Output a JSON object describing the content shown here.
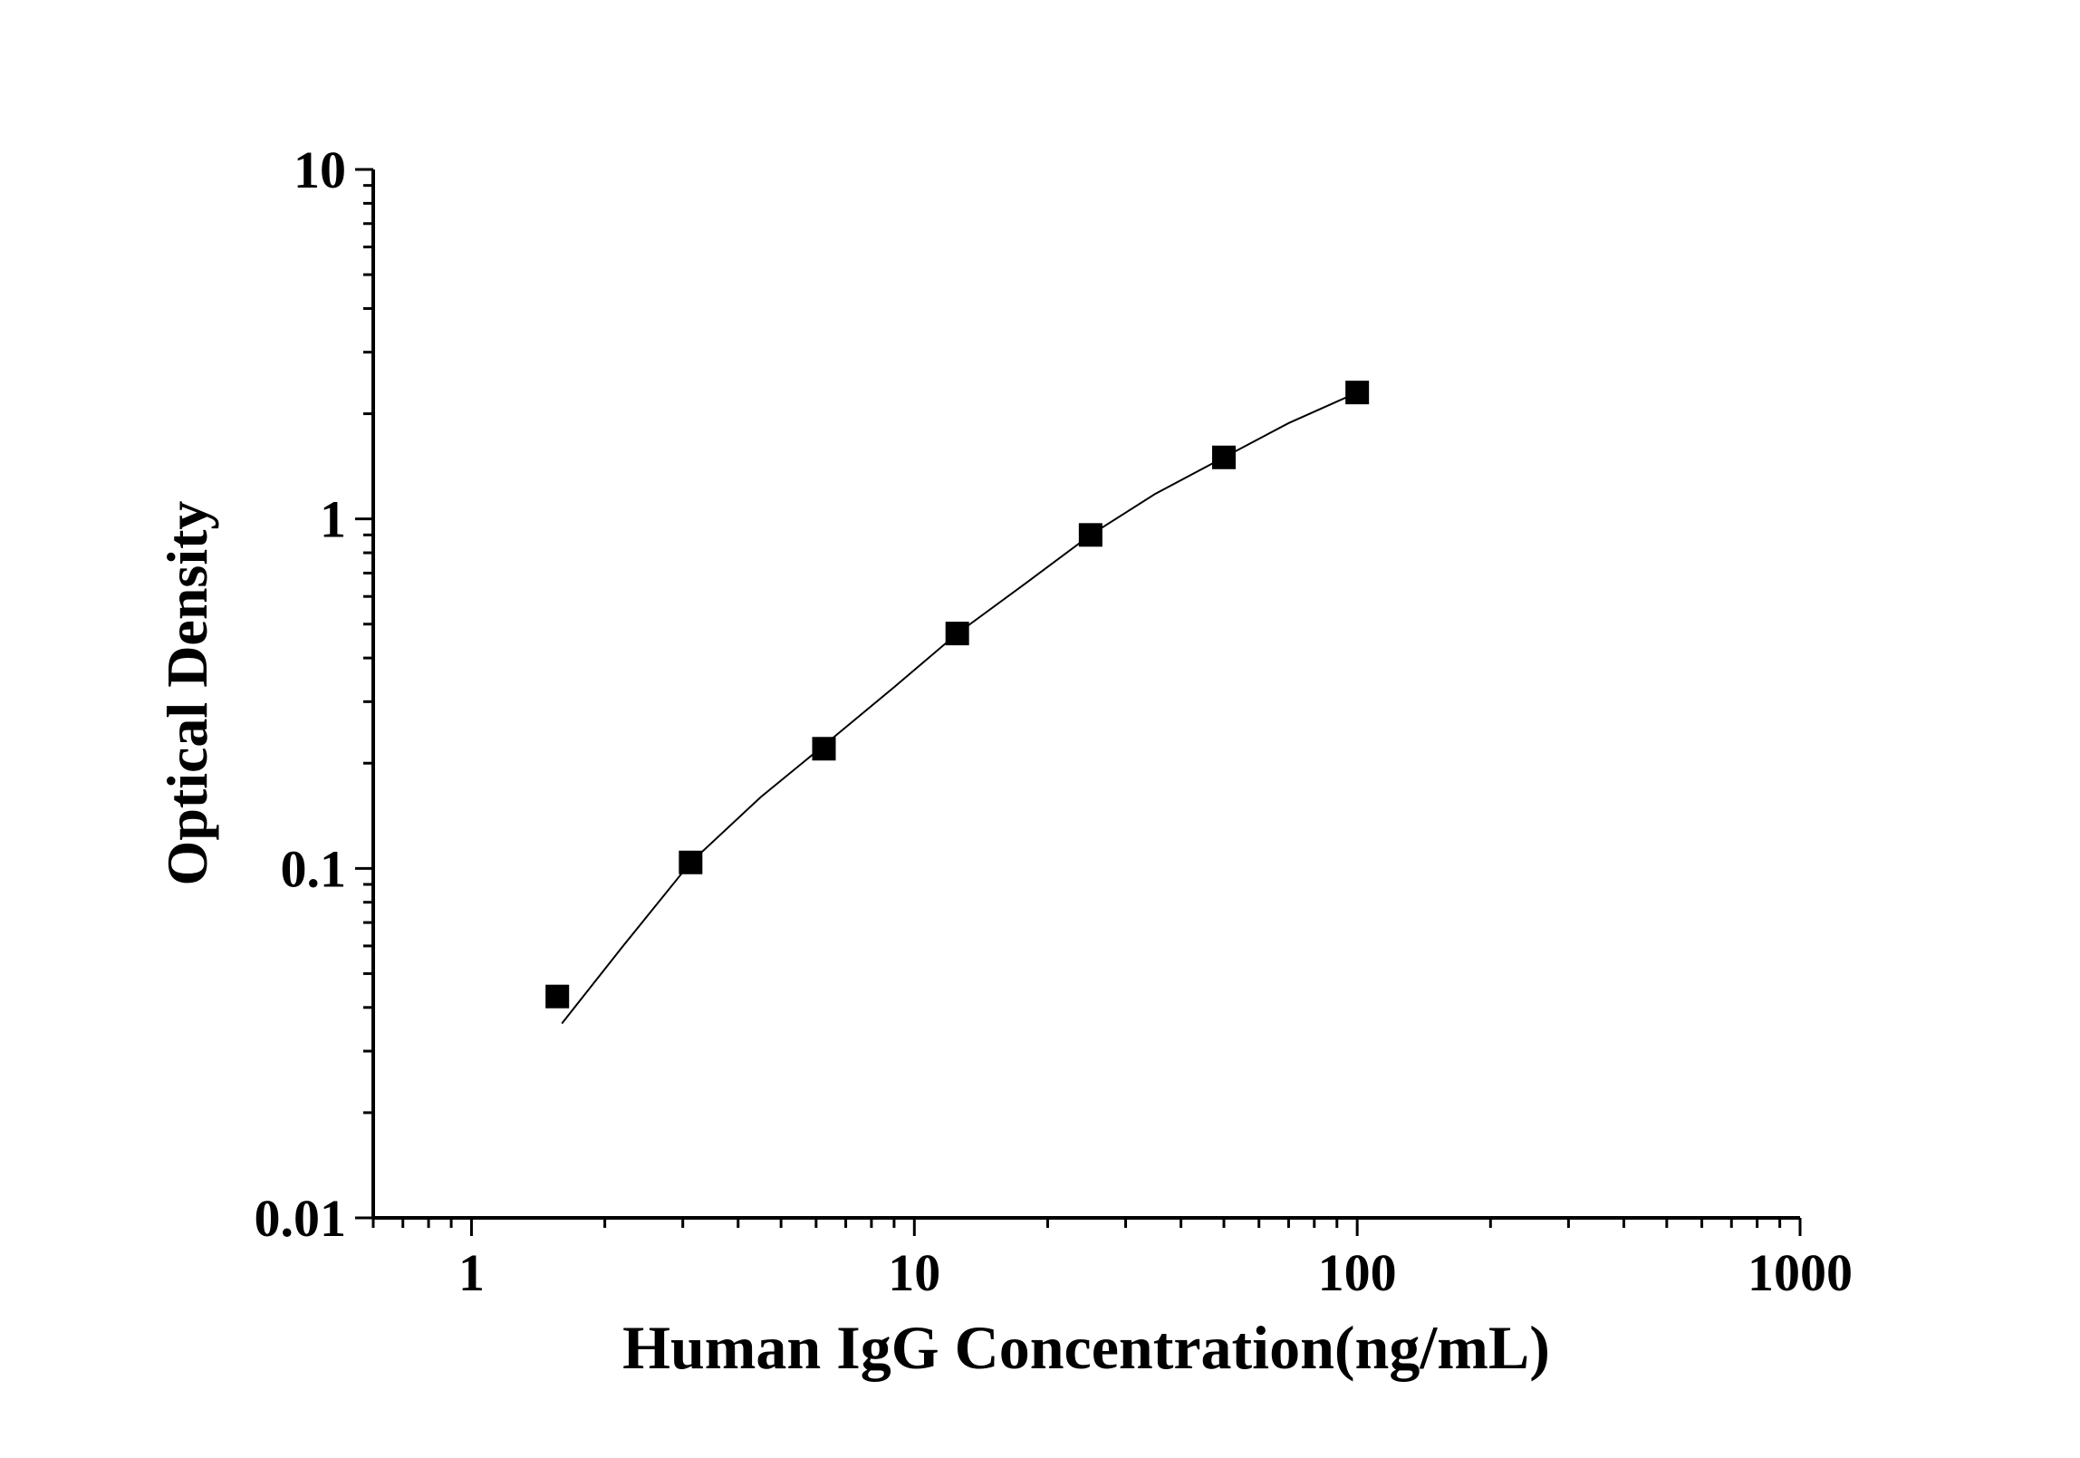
{
  "chart_data": {
    "type": "scatter",
    "title": "",
    "xlabel": "Human IgG Concentration(ng/mL)",
    "ylabel": "Optical Density",
    "x_scale": "log",
    "y_scale": "log",
    "xlim": [
      0.6,
      1000
    ],
    "ylim": [
      0.01,
      10
    ],
    "x_ticks": [
      1,
      10,
      100,
      1000
    ],
    "x_tick_labels": [
      "1",
      "10",
      "100",
      "1000"
    ],
    "y_ticks": [
      0.01,
      0.1,
      1,
      10
    ],
    "y_tick_labels": [
      "0.01",
      "0.1",
      "1",
      "10"
    ],
    "grid": false,
    "marker": "square",
    "color": "#000000",
    "series": [
      {
        "x": [
          1.5625,
          3.125,
          6.25,
          12.5,
          25,
          50,
          100
        ],
        "y": [
          0.043,
          0.104,
          0.22,
          0.47,
          0.9,
          1.5,
          2.3
        ]
      }
    ],
    "fit_curve": {
      "x": [
        1.6,
        2.2,
        3.125,
        4.5,
        6.25,
        9,
        12.5,
        18,
        25,
        35,
        50,
        70,
        100
      ],
      "y": [
        0.036,
        0.06,
        0.104,
        0.16,
        0.225,
        0.33,
        0.47,
        0.66,
        0.9,
        1.18,
        1.5,
        1.88,
        2.3
      ]
    }
  }
}
